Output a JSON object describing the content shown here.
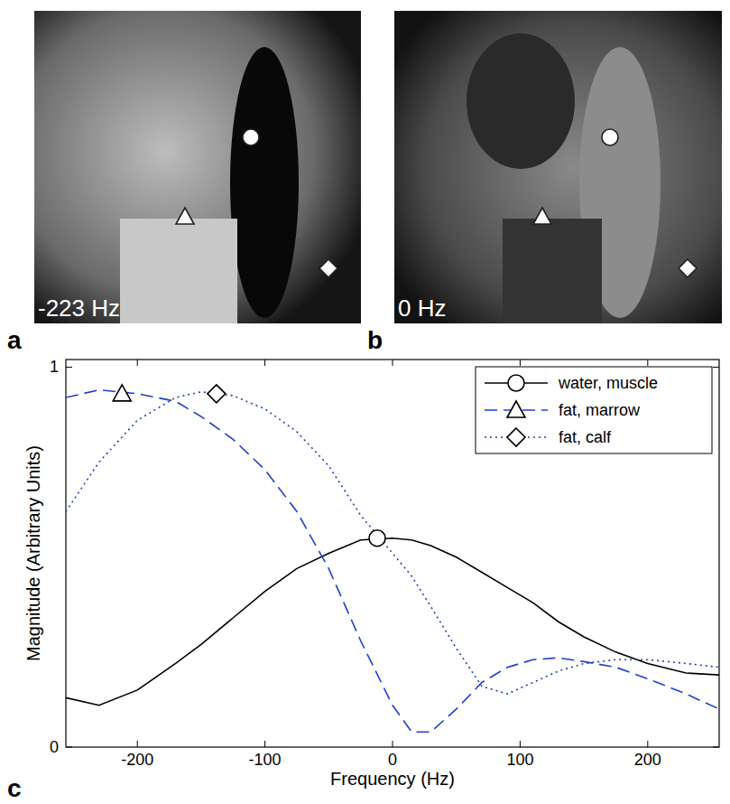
{
  "images": [
    {
      "letter": "a",
      "label": "-223 Hz"
    },
    {
      "letter": "b",
      "label": "0 Hz"
    }
  ],
  "chart_data": {
    "type": "line",
    "panel": "c",
    "x_label": "Frequency (Hz)",
    "y_label": "Magnitude (Arbitrary Units)",
    "xlim": [
      -256,
      256
    ],
    "ylim": [
      0,
      1.02
    ],
    "xticks": [
      -200,
      -100,
      0,
      100,
      200
    ],
    "yticks": [
      0,
      1
    ],
    "legend": "upper right",
    "x": [
      -256,
      -230,
      -200,
      -170,
      -150,
      -125,
      -100,
      -75,
      -50,
      -25,
      0,
      15,
      30,
      50,
      70,
      90,
      110,
      130,
      150,
      175,
      200,
      230,
      256
    ],
    "series": [
      {
        "name": "water, muscle",
        "color": "#000000",
        "line_style": "solid",
        "marker": "circle",
        "peak_x": -12,
        "peak_y": 0.55,
        "values": [
          0.13,
          0.11,
          0.15,
          0.22,
          0.27,
          0.34,
          0.41,
          0.47,
          0.51,
          0.545,
          0.55,
          0.545,
          0.53,
          0.5,
          0.46,
          0.42,
          0.38,
          0.33,
          0.29,
          0.25,
          0.22,
          0.195,
          0.19
        ]
      },
      {
        "name": "fat, marrow",
        "color": "#1f3fd0",
        "line_style": "dashed",
        "marker": "triangle",
        "peak_x": -212,
        "peak_y": 0.93,
        "values": [
          0.92,
          0.94,
          0.93,
          0.91,
          0.87,
          0.81,
          0.73,
          0.62,
          0.47,
          0.28,
          0.11,
          0.04,
          0.04,
          0.1,
          0.17,
          0.21,
          0.23,
          0.235,
          0.225,
          0.21,
          0.18,
          0.14,
          0.1
        ]
      },
      {
        "name": "fat, calf",
        "color": "#1f3fb0",
        "line_style": "dotted",
        "marker": "diamond",
        "peak_x": -138,
        "peak_y": 0.93,
        "values": [
          0.62,
          0.75,
          0.86,
          0.92,
          0.935,
          0.925,
          0.89,
          0.83,
          0.74,
          0.61,
          0.51,
          0.45,
          0.37,
          0.26,
          0.16,
          0.14,
          0.17,
          0.2,
          0.22,
          0.23,
          0.23,
          0.22,
          0.21
        ]
      }
    ]
  }
}
